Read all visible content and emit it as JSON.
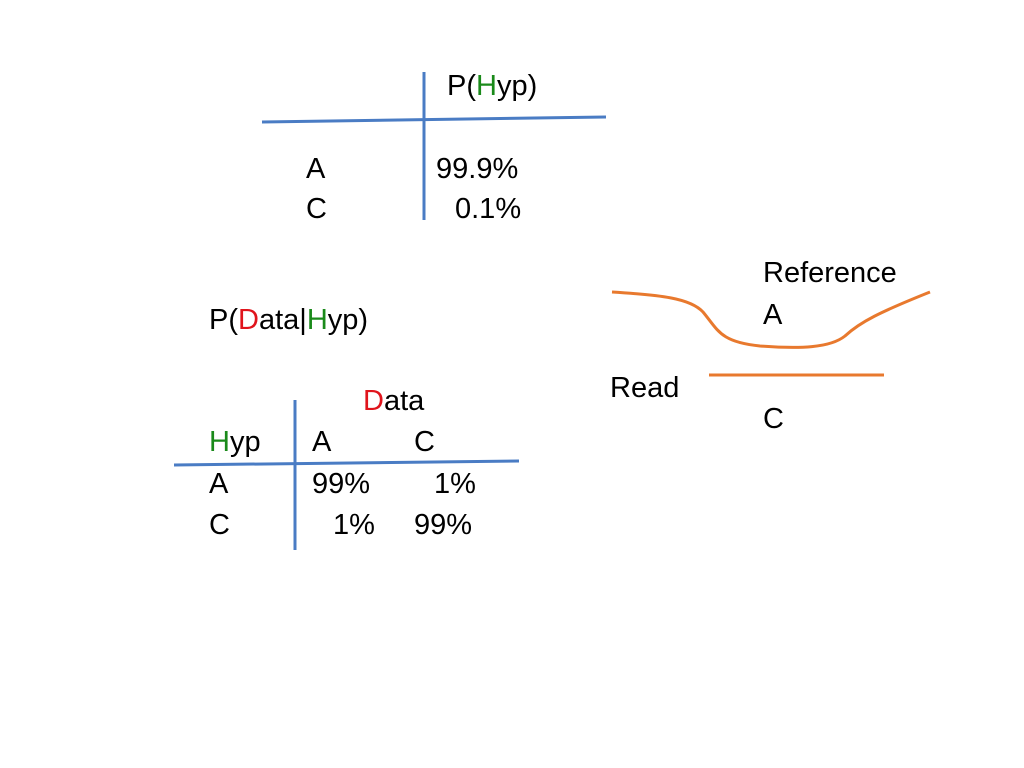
{
  "colors": {
    "table_lines": "#4a7cc4",
    "read_lines": "#e8792e",
    "red": "#e0141c",
    "green": "#1a8a1a"
  },
  "prior": {
    "header": {
      "pre": "P(",
      "hyp": "H",
      "post": "yp)"
    },
    "rows": [
      {
        "label": "A",
        "value": "99.9%"
      },
      {
        "label": "C",
        "value": "0.1%"
      }
    ]
  },
  "likelihood": {
    "title": {
      "pre": "P(",
      "data": "D",
      "mid": "ata|",
      "hyp": "H",
      "post": "yp)"
    },
    "col_group": {
      "first": "D",
      "rest": "ata"
    },
    "row_header": {
      "first": "H",
      "rest": "yp"
    },
    "columns": [
      "A",
      "C"
    ],
    "rows": [
      {
        "label": "A",
        "values": [
          "99%",
          "1%"
        ]
      },
      {
        "label": "C",
        "values": [
          "1%",
          "99%"
        ]
      }
    ]
  },
  "alignment": {
    "reference_label": "Reference",
    "reference_base": "A",
    "read_label": "Read",
    "read_base": "C"
  }
}
